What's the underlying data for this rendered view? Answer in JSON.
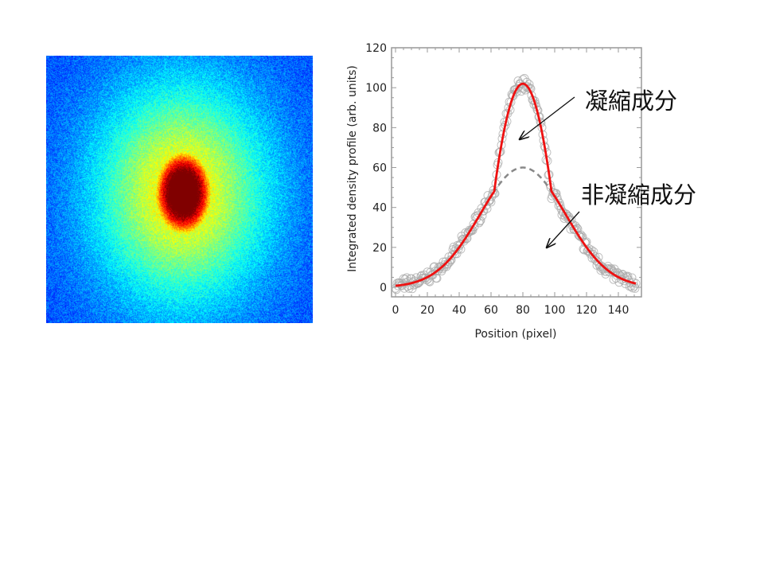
{
  "image": {
    "description_label": "absorption image",
    "colormap": "jet"
  },
  "annotations": {
    "condensate": "凝縮成分",
    "thermal": "非凝縮成分"
  },
  "chart_data": {
    "type": "scatter",
    "title": "",
    "xlabel": "Position (pixel)",
    "ylabel": "Integrated density profile (arb. units)",
    "xlim": [
      -3,
      152
    ],
    "ylim": [
      -5,
      120
    ],
    "xticks": [
      0,
      20,
      40,
      60,
      80,
      100,
      120,
      140
    ],
    "yticks": [
      0,
      20,
      40,
      60,
      80,
      100,
      120
    ],
    "series": [
      {
        "name": "data",
        "style": "open circles",
        "color": "#aaaaaa",
        "x_range": [
          0,
          151
        ],
        "model": "fit + noise"
      },
      {
        "name": "bimodal fit",
        "style": "solid",
        "color": "#ee1111",
        "thermal_amp": 60,
        "center": 80,
        "thermal_sigma": 27,
        "condensate_amp": 42,
        "condensate_radius": 18
      },
      {
        "name": "thermal component",
        "style": "dashed",
        "color": "#888888",
        "thermal_amp": 60,
        "center": 80,
        "thermal_sigma": 27
      }
    ]
  }
}
